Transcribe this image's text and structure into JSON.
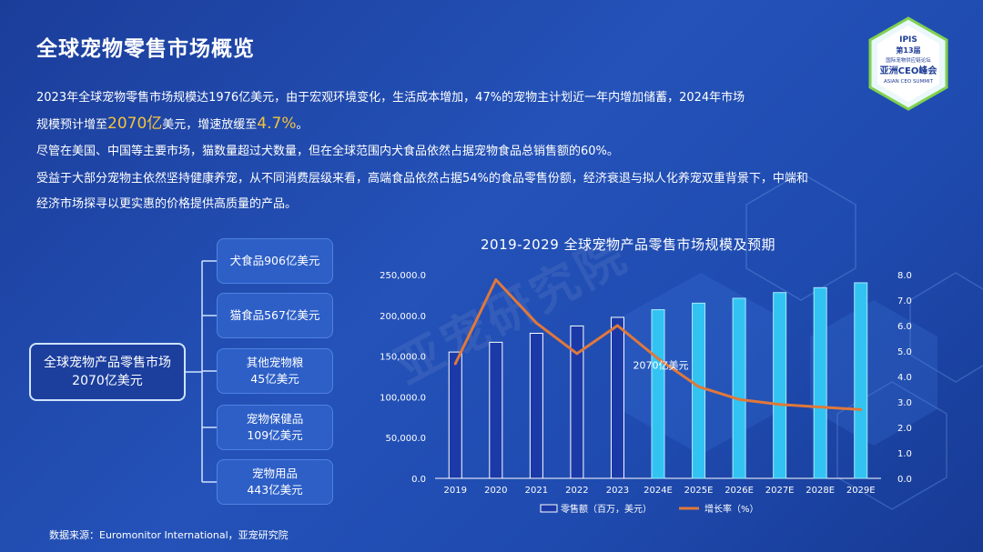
{
  "page": {
    "title": "全球宠物零售市场概览",
    "logo": {
      "line1": "IPIS",
      "line2": "第13届",
      "line3": "国际宠物供应链论坛",
      "line4": "亚洲CEO峰会",
      "line5": "ASIAN CEO SUMMIT"
    },
    "watermark": "亚宠研究院",
    "paragraphs": {
      "p1a": "2023年全球宠物零售市场规模达1976亿美元，由于宏观环境变化，生活成本增加，47%的宠物主计划近一年内增加储蓄，2024年市场",
      "p1b_pre": "规模预计增至",
      "p1b_hl1": "2070亿",
      "p1b_mid": "美元，增速放缓至",
      "p1b_hl2": "4.7%",
      "p1b_end": "。",
      "p2": "尽管在美国、中国等主要市场，猫数量超过犬数量，但在全球范围内犬食品依然占据宠物食品总销售额的60%。",
      "p3": "受益于大部分宠物主依然坚持健康养宠，从不同消费层级来看，高端食品依然占据54%的食品零售份额，经济衰退与拟人化养宠双重背景下，中端和",
      "p4": "经济市场探寻以更实惠的价格提供高质量的产品。"
    },
    "tree": {
      "root_line1": "全球宠物产品零售市场",
      "root_line2": "2070亿美元",
      "leaves": [
        {
          "line1": "犬食品906亿美元",
          "line2": ""
        },
        {
          "line1": "猫食品567亿美元",
          "line2": ""
        },
        {
          "line1": "其他宠物粮",
          "line2": "45亿美元"
        },
        {
          "line1": "宠物保健品",
          "line2": "109亿美元"
        },
        {
          "line1": "宠物用品",
          "line2": "443亿美元"
        }
      ]
    },
    "source": "数据来源：Euromonitor International，亚宠研究院",
    "colors": {
      "accent": "#f3c23c",
      "bar_historic": "#1b3aa8",
      "bar_forecast": "#33c3f2",
      "line": "#e0783a"
    }
  },
  "chart_data": {
    "type": "bar",
    "title": "2019-2029 全球宠物产品零售市场规模及预期",
    "categories": [
      "2019",
      "2020",
      "2021",
      "2022",
      "2023",
      "2024E",
      "2025E",
      "2026E",
      "2027E",
      "2028E",
      "2029E"
    ],
    "series": [
      {
        "name": "零售额（百万，美元）",
        "type": "bar",
        "axis": "left",
        "values": [
          155000,
          167000,
          178000,
          187000,
          197600,
          207000,
          215000,
          221000,
          228000,
          234000,
          240000
        ]
      },
      {
        "name": "增长率（%）",
        "type": "line",
        "axis": "right",
        "values": [
          4.5,
          7.8,
          6.1,
          4.9,
          6.0,
          4.7,
          3.6,
          3.1,
          2.9,
          2.8,
          2.7
        ]
      }
    ],
    "left_ticks": [
      "250,000.0",
      "200,000.0",
      "150,000.0",
      "100,000.0",
      "50,000.0",
      "0.0"
    ],
    "right_ticks": [
      "8.0",
      "7.0",
      "6.0",
      "5.0",
      "4.0",
      "3.0",
      "2.0",
      "1.0",
      "0.0"
    ],
    "ylim_left": [
      0,
      250000
    ],
    "ylim_right": [
      0,
      8
    ],
    "annotation": "2070亿美元",
    "annotation_index": 5,
    "legend_position": "bottom"
  }
}
